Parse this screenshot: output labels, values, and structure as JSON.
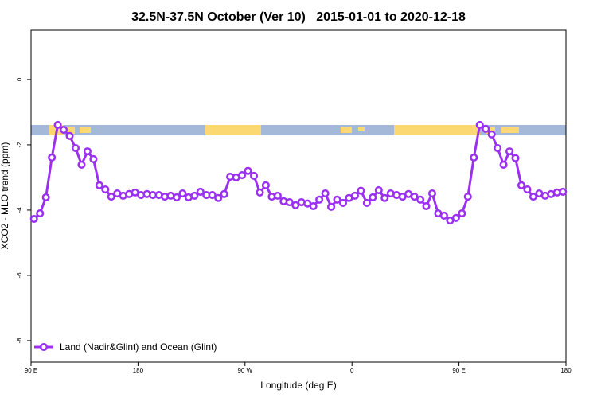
{
  "chart_data": {
    "type": "line",
    "title": "32.5N-37.5N October (Ver 10)   2015-01-01 to 2020-12-18",
    "x_label": "Longitude (deg E)",
    "y_label": "XCO2 - MLO trend (ppm)",
    "xlim": [
      90,
      540
    ],
    "ylim": [
      -8.66,
      1.51
    ],
    "xticks": [
      {
        "value": 90,
        "label": "90 E"
      },
      180,
      {
        "value": 270,
        "label": "90 W"
      },
      {
        "value": 360,
        "label": "0"
      },
      {
        "value": 450,
        "label": "90 E"
      },
      {
        "value": 540,
        "label": "180"
      }
    ],
    "yticks": [
      -8,
      -6,
      -4,
      -2,
      0
    ],
    "legend": "bottom-left",
    "x": [
      92.5,
      97.5,
      102.5,
      107.5,
      112.5,
      117.5,
      122.5,
      127.5,
      132.5,
      137.5,
      142.5,
      147.5,
      152.5,
      157.5,
      162.5,
      167.5,
      172.5,
      177.5,
      182.5,
      187.5,
      192.5,
      197.5,
      202.5,
      207.5,
      212.5,
      217.5,
      222.5,
      227.5,
      232.5,
      237.5,
      242.5,
      247.5,
      252.5,
      257.5,
      262.5,
      267.5,
      272.5,
      277.5,
      282.5,
      287.5,
      292.5,
      297.5,
      302.5,
      307.5,
      312.5,
      317.5,
      322.5,
      327.5,
      332.5,
      337.5,
      342.5,
      347.5,
      352.5,
      357.5,
      362.5,
      367.5,
      372.5,
      377.5,
      382.5,
      387.5,
      392.5,
      397.5,
      402.5,
      407.5,
      412.5,
      417.5,
      422.5,
      427.5,
      432.5,
      437.5,
      442.5,
      447.5,
      452.5,
      457.5,
      462.5,
      467.5,
      472.5,
      477.5,
      482.5,
      487.5,
      492.5,
      497.5,
      502.5,
      507.5,
      512.5,
      517.5,
      522.5,
      527.5,
      532.5,
      537.5
    ],
    "series": [
      {
        "name": "Land (Nadir&Glint) and Ocean (Glint)",
        "color": "#9b30f0",
        "values": [
          -4.27,
          -4.1,
          -3.61,
          -2.39,
          -1.39,
          -1.54,
          -1.73,
          -2.1,
          -2.61,
          -2.2,
          -2.44,
          -3.24,
          -3.37,
          -3.59,
          -3.49,
          -3.56,
          -3.51,
          -3.46,
          -3.54,
          -3.51,
          -3.54,
          -3.54,
          -3.59,
          -3.56,
          -3.61,
          -3.49,
          -3.61,
          -3.56,
          -3.44,
          -3.54,
          -3.54,
          -3.63,
          -3.51,
          -2.98,
          -3.0,
          -2.93,
          -2.8,
          -2.95,
          -3.46,
          -3.24,
          -3.59,
          -3.56,
          -3.73,
          -3.76,
          -3.85,
          -3.76,
          -3.8,
          -3.88,
          -3.68,
          -3.49,
          -3.9,
          -3.68,
          -3.78,
          -3.63,
          -3.56,
          -3.41,
          -3.78,
          -3.61,
          -3.39,
          -3.63,
          -3.49,
          -3.54,
          -3.59,
          -3.51,
          -3.59,
          -3.68,
          -3.88,
          -3.49,
          -4.1,
          -4.17,
          -4.32,
          -4.24,
          -4.1,
          -3.59,
          -2.39,
          -1.39,
          -1.51,
          -1.68,
          -2.1,
          -2.61,
          -2.2,
          -2.41,
          -3.24,
          -3.37,
          -3.59,
          -3.49,
          -3.56,
          -3.51,
          -3.46,
          -3.44
        ]
      }
    ]
  }
}
